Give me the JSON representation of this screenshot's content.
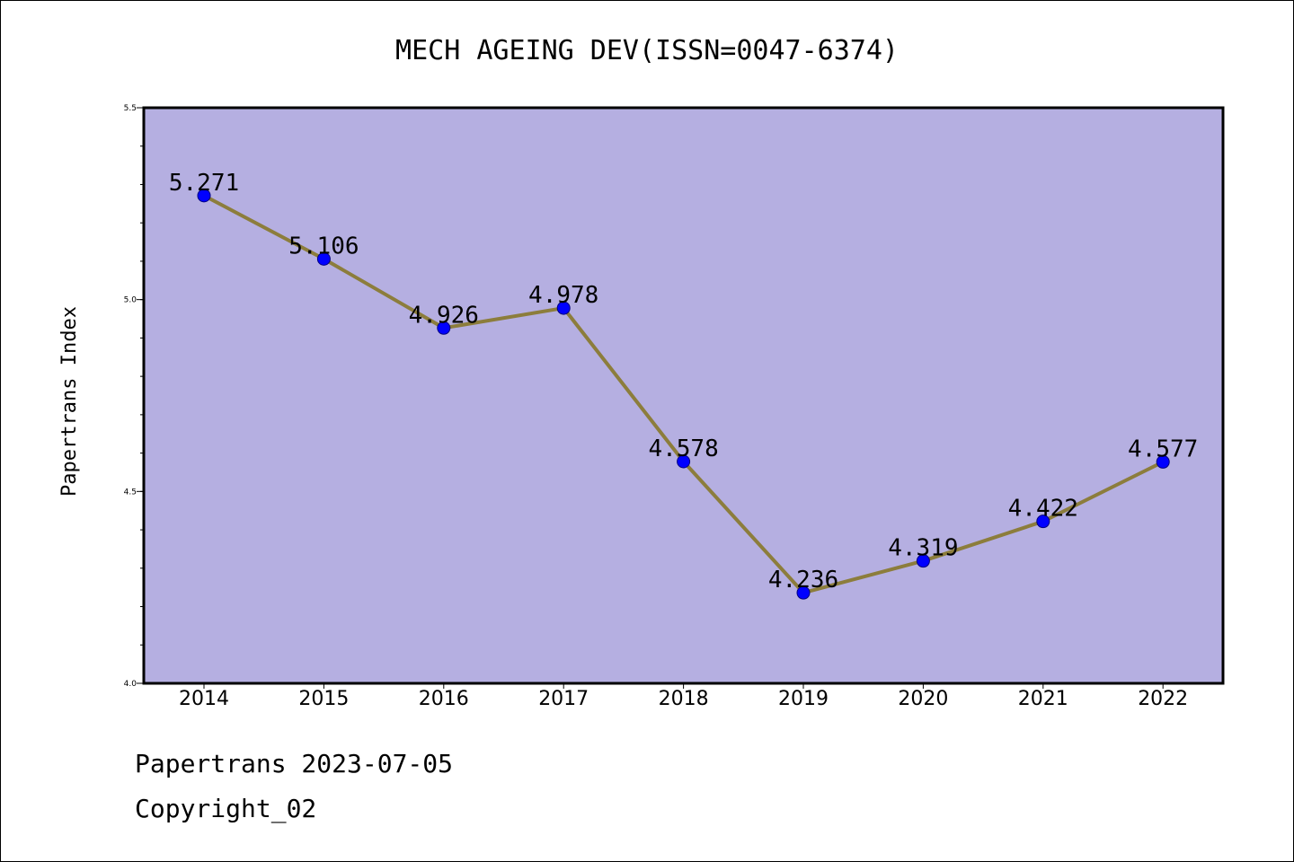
{
  "chart_data": {
    "type": "line",
    "title": "MECH AGEING DEV(ISSN=0047-6374)",
    "xlabel": "",
    "ylabel": "Papertrans Index",
    "categories": [
      "2014",
      "2015",
      "2016",
      "2017",
      "2018",
      "2019",
      "2020",
      "2021",
      "2022"
    ],
    "series": [
      {
        "values": [
          5.271,
          5.106,
          4.926,
          4.978,
          4.578,
          4.236,
          4.319,
          4.422,
          4.577
        ]
      }
    ],
    "data_labels": [
      "5.271",
      "5.106",
      "4.926",
      "4.978",
      "4.578",
      "4.236",
      "4.319",
      "4.422",
      "4.577"
    ],
    "ylim": [
      4.0,
      5.5
    ],
    "yticks": [
      "4.0",
      "4.5",
      "5.0",
      "5.5"
    ],
    "grid": false,
    "legend": "none",
    "colors": {
      "plot_background": "#b5afe1",
      "line": "#8c7d3c",
      "marker": "#0000ff"
    }
  },
  "footer": {
    "line1": "Papertrans 2023-07-05",
    "line2": "Copyright_02"
  }
}
